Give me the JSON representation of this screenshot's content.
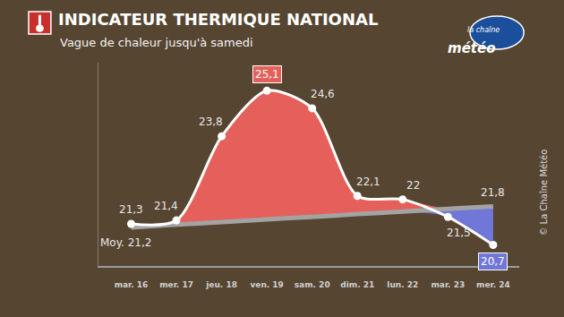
{
  "chart_data": {
    "type": "line",
    "title": "INDICATEUR THERMIQUE NATIONAL",
    "subtitle": "Vague de chaleur jusqu'à samedi",
    "categories": [
      "mar. 16",
      "mer. 17",
      "jeu. 18",
      "ven. 19",
      "sam. 20",
      "dim. 21",
      "lun. 22",
      "mar. 23",
      "mer. 24"
    ],
    "series": [
      {
        "values": [
          21.3,
          21.4,
          23.8,
          25.1,
          24.6,
          22.1,
          22,
          21.5,
          20.7
        ],
        "value_labels": [
          "21,3",
          "21,4",
          "23,8",
          "25,1",
          "24,6",
          "22,1",
          "22",
          "21,5",
          "20,7"
        ],
        "color": "#e5605a",
        "marker": "circle"
      },
      {
        "values": [
          21.2,
          21.28,
          21.35,
          21.43,
          21.5,
          21.58,
          21.65,
          21.73,
          21.8
        ],
        "value_labels": [
          "Moy. 21,2",
          null,
          null,
          null,
          null,
          null,
          null,
          null,
          "21,8"
        ],
        "color": "#a3a3a3"
      }
    ],
    "ylim": [
      20.1,
      25.9
    ],
    "grid": false,
    "data_labels": true,
    "tick_labels": "x",
    "annotations": [
      "la chaîne",
      "météo",
      "© La Chaîne Météo"
    ]
  }
}
